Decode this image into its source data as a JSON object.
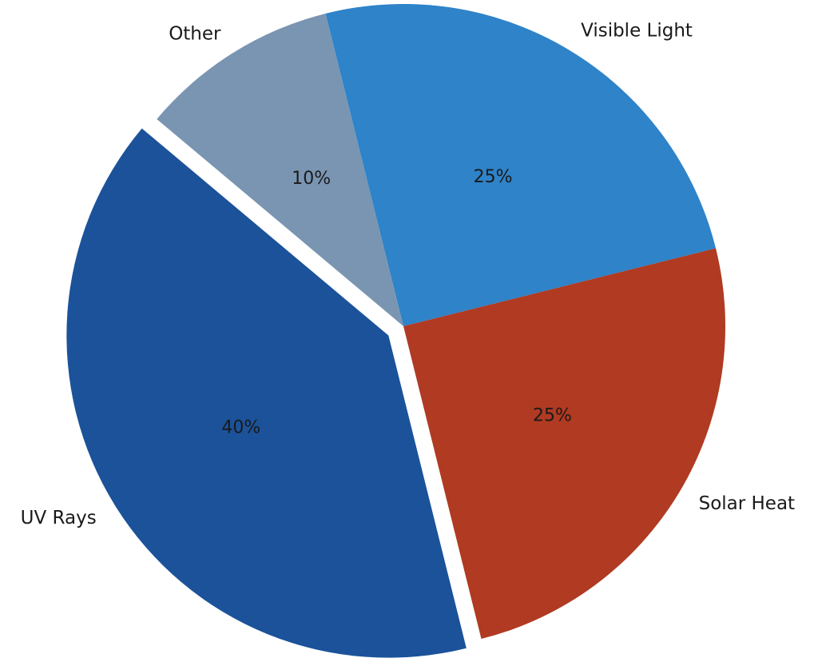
{
  "chart_data": {
    "type": "pie",
    "title": "",
    "categories": [
      "Visible Light",
      "Solar Heat",
      "UV Rays",
      "Other"
    ],
    "values": [
      25,
      25,
      40,
      10
    ],
    "value_labels": [
      "25%",
      "25%",
      "40%",
      "10%"
    ],
    "colors": [
      "#2e83c9",
      "#b03a22",
      "#1b529a",
      "#7a95b2"
    ],
    "exploded": "UV Rays",
    "legend": "none"
  }
}
